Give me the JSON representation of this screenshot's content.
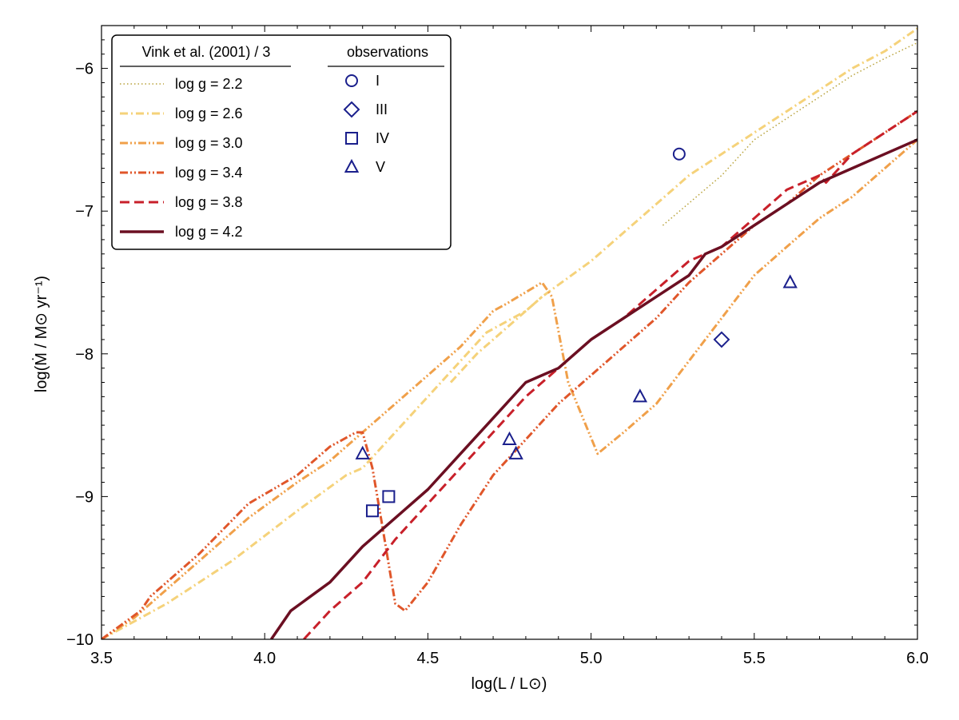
{
  "chart_data": {
    "type": "line",
    "xlabel": "log(L / L⊙)",
    "ylabel": "log(Ṁ / M⊙ yr⁻¹)",
    "xlim": [
      3.5,
      6.0
    ],
    "ylim": [
      -10,
      -5.7
    ],
    "x_ticks": [
      3.5,
      4.0,
      4.5,
      5.0,
      5.5,
      6.0
    ],
    "x_tick_labels": [
      "3.5",
      "4.0",
      "4.5",
      "5.0",
      "5.5",
      "6.0"
    ],
    "y_ticks": [
      -10,
      -9,
      -8,
      -7,
      -6
    ],
    "y_tick_labels": [
      "−10",
      "−9",
      "−8",
      "−7",
      "−6"
    ],
    "grid": false,
    "legend_model_title": "Vink et al. (2001) / 3",
    "legend_obs_title": "observations",
    "legend_position": "top-left",
    "series": [
      {
        "name": "log g = 2.2",
        "color": "#b8a23a",
        "dash": "dotted",
        "width": 1.5,
        "x": [
          5.22,
          5.4,
          5.5,
          5.6,
          5.7,
          5.8,
          5.9,
          6.0
        ],
        "y": [
          -7.1,
          -6.75,
          -6.5,
          -6.35,
          -6.2,
          -6.05,
          -5.93,
          -5.82
        ]
      },
      {
        "name": "log g = 2.6",
        "color": "#f5d27a",
        "dash": "dashdot",
        "width": 3,
        "x": [
          4.57,
          4.65,
          4.75,
          4.85,
          5.0,
          5.1,
          5.2,
          5.3,
          5.4,
          5.5,
          5.6,
          5.7,
          5.8,
          5.9,
          6.0
        ],
        "y": [
          -8.2,
          -8.0,
          -7.8,
          -7.6,
          -7.35,
          -7.15,
          -6.95,
          -6.75,
          -6.6,
          -6.45,
          -6.3,
          -6.15,
          -6.0,
          -5.88,
          -5.72
        ],
        "x2": [
          3.5,
          3.7,
          3.9,
          4.1,
          4.25,
          4.3,
          4.4,
          4.5,
          4.6,
          4.68,
          4.8,
          4.85
        ],
        "y2": [
          -10.0,
          -9.75,
          -9.45,
          -9.1,
          -8.85,
          -8.8,
          -8.55,
          -8.3,
          -8.05,
          -7.85,
          -7.7,
          -7.6
        ]
      },
      {
        "name": "log g = 3.0",
        "color": "#f0a04a",
        "dash": "dashdotdot",
        "width": 3,
        "x": [
          3.5,
          3.6,
          3.8,
          3.95,
          4.1,
          4.2,
          4.3,
          4.4,
          4.5,
          4.6,
          4.7,
          4.74,
          4.85,
          4.88,
          4.93,
          5.02,
          5.1,
          5.2,
          5.3,
          5.4,
          5.5,
          5.6,
          5.7,
          5.8,
          5.9,
          6.0
        ],
        "y": [
          -10.0,
          -9.85,
          -9.45,
          -9.15,
          -8.9,
          -8.75,
          -8.55,
          -8.35,
          -8.15,
          -7.95,
          -7.7,
          -7.65,
          -7.5,
          -7.6,
          -8.2,
          -8.7,
          -8.55,
          -8.35,
          -8.05,
          -7.75,
          -7.45,
          -7.25,
          -7.05,
          -6.9,
          -6.7,
          -6.5
        ]
      },
      {
        "name": "log g = 3.4",
        "color": "#e0562a",
        "dash": "dashdotdot",
        "width": 3,
        "x": [
          3.5,
          3.62,
          3.65,
          3.8,
          3.95,
          4.1,
          4.2,
          4.28,
          4.3,
          4.33,
          4.36,
          4.4,
          4.43,
          4.5,
          4.6,
          4.7,
          4.8,
          4.9,
          5.0,
          5.1,
          5.2,
          5.3,
          5.4,
          5.5,
          5.6,
          5.7,
          5.8,
          5.9,
          6.0
        ],
        "y": [
          -10.0,
          -9.8,
          -9.7,
          -9.4,
          -9.05,
          -8.85,
          -8.65,
          -8.55,
          -8.55,
          -8.8,
          -9.2,
          -9.75,
          -9.8,
          -9.6,
          -9.2,
          -8.85,
          -8.6,
          -8.35,
          -8.15,
          -7.95,
          -7.75,
          -7.5,
          -7.3,
          -7.1,
          -6.95,
          -6.75,
          -6.6,
          -6.45,
          -6.3
        ]
      },
      {
        "name": "log g = 3.8",
        "color": "#c8202a",
        "dash": "dashed",
        "width": 3,
        "x": [
          4.12,
          4.2,
          4.3,
          4.4,
          4.5,
          4.6,
          4.7,
          4.8,
          4.9,
          5.0,
          5.1,
          5.2,
          5.3,
          5.35,
          5.4,
          5.5,
          5.6,
          5.7,
          5.72,
          5.8,
          5.9,
          6.0
        ],
        "y": [
          -10.0,
          -9.8,
          -9.6,
          -9.3,
          -9.05,
          -8.8,
          -8.55,
          -8.3,
          -8.1,
          -7.9,
          -7.75,
          -7.55,
          -7.35,
          -7.3,
          -7.25,
          -7.05,
          -6.85,
          -6.75,
          -6.8,
          -6.6,
          -6.45,
          -6.3
        ]
      },
      {
        "name": "log g = 4.2",
        "color": "#6b0f22",
        "dash": "solid",
        "width": 3.5,
        "x": [
          4.02,
          4.08,
          4.2,
          4.3,
          4.4,
          4.5,
          4.6,
          4.7,
          4.8,
          4.85,
          4.9,
          5.0,
          5.1,
          5.2,
          5.3,
          5.35,
          5.4,
          5.5,
          5.6,
          5.7,
          5.8,
          5.9,
          6.0
        ],
        "y": [
          -10.0,
          -9.8,
          -9.6,
          -9.35,
          -9.15,
          -8.95,
          -8.7,
          -8.45,
          -8.2,
          -8.15,
          -8.1,
          -7.9,
          -7.75,
          -7.6,
          -7.45,
          -7.3,
          -7.25,
          -7.1,
          -6.95,
          -6.8,
          -6.7,
          -6.6,
          -6.5
        ]
      }
    ],
    "observations": {
      "color": "#1a1f8c",
      "groups": [
        {
          "name": "I",
          "marker": "circle",
          "points": [
            [
              5.27,
              -6.6
            ]
          ]
        },
        {
          "name": "III",
          "marker": "diamond",
          "points": [
            [
              5.4,
              -7.9
            ]
          ]
        },
        {
          "name": "IV",
          "marker": "square",
          "points": [
            [
              4.33,
              -9.1
            ],
            [
              4.38,
              -9.0
            ]
          ]
        },
        {
          "name": "V",
          "marker": "triangle",
          "points": [
            [
              4.3,
              -8.7
            ],
            [
              4.75,
              -8.6
            ],
            [
              4.77,
              -8.7
            ],
            [
              5.15,
              -8.3
            ],
            [
              5.61,
              -7.5
            ]
          ]
        }
      ]
    }
  }
}
